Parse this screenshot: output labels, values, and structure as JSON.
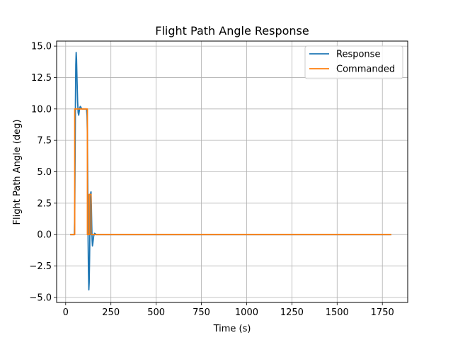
{
  "chart_data": {
    "type": "line",
    "title": "Flight Path Angle Response",
    "xlabel": "Time (s)",
    "ylabel": "Flight Path Angle (deg)",
    "xlim": [
      -50,
      1890
    ],
    "ylim": [
      -5.4,
      15.4
    ],
    "xticks": [
      0,
      250,
      500,
      750,
      1000,
      1250,
      1500,
      1750
    ],
    "yticks": [
      -5.0,
      -2.5,
      0.0,
      2.5,
      5.0,
      7.5,
      10.0,
      12.5,
      15.0
    ],
    "xtick_labels": [
      "0",
      "250",
      "500",
      "750",
      "1000",
      "1250",
      "1500",
      "1750"
    ],
    "ytick_labels": [
      "−5.0",
      "−2.5",
      "0.0",
      "2.5",
      "5.0",
      "7.5",
      "10.0",
      "12.5",
      "15.0"
    ],
    "grid": true,
    "legend_position": "top-right",
    "series": [
      {
        "name": "Response",
        "color": "#1f77b4",
        "x": [
          25,
          48,
          50,
          52,
          54,
          56,
          58,
          60,
          63,
          66,
          69,
          72,
          75,
          78,
          81,
          85,
          90,
          95,
          100,
          105,
          110,
          115,
          118,
          120,
          122,
          124,
          126,
          128,
          130,
          132,
          134,
          136,
          138,
          140,
          142,
          144,
          146,
          148,
          150,
          155,
          160,
          170,
          180,
          200,
          300,
          500,
          1000,
          1500,
          1800
        ],
        "y": [
          0.0,
          0.0,
          1.5,
          6.0,
          10.5,
          13.5,
          14.5,
          14.0,
          12.2,
          10.6,
          9.7,
          9.5,
          9.8,
          10.1,
          10.2,
          10.1,
          10.0,
          10.0,
          10.0,
          10.0,
          10.0,
          10.0,
          9.5,
          8.0,
          4.0,
          -0.5,
          -3.0,
          -4.4,
          -3.8,
          -2.0,
          0.3,
          2.2,
          3.3,
          3.4,
          2.3,
          0.8,
          -0.4,
          -0.9,
          -0.7,
          -0.1,
          0.1,
          0.0,
          0.0,
          0.0,
          0.0,
          0.0,
          0.0,
          0.0,
          0.0
        ]
      },
      {
        "name": "Commanded",
        "color": "#ff7f0e",
        "x": [
          25,
          50,
          50,
          120,
          120,
          130,
          130,
          140,
          140,
          1800
        ],
        "y": [
          0,
          0,
          10,
          10,
          0,
          0,
          3.2,
          3.2,
          0,
          0
        ]
      }
    ]
  }
}
